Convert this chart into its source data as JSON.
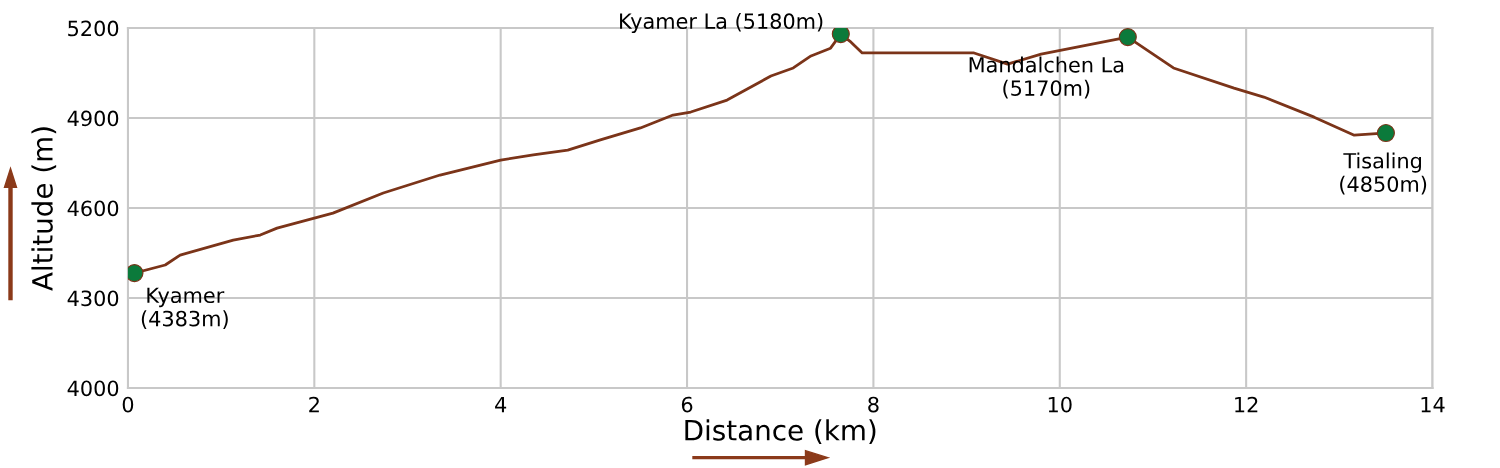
{
  "chart_data": {
    "type": "line",
    "xlabel": "Distance (km)",
    "ylabel": "Altitude (m)",
    "xlim": [
      0,
      14
    ],
    "xticks": [
      0,
      2,
      4,
      6,
      8,
      10,
      12,
      14
    ],
    "ylim": [
      4000,
      5200
    ],
    "yticks": [
      4000,
      4300,
      4600,
      4900,
      5200
    ],
    "grid": true,
    "series": [
      {
        "color": "#7b3419",
        "x": [
          0.07,
          0.4,
          0.56,
          1.13,
          1.42,
          1.6,
          2.2,
          2.74,
          3.35,
          4.0,
          4.35,
          4.72,
          5.07,
          5.5,
          5.85,
          6.04,
          6.43,
          6.9,
          7.14,
          7.33,
          7.54,
          7.65,
          7.76,
          7.88,
          9.08,
          9.44,
          9.8,
          10.73,
          11.22,
          11.87,
          12.19,
          12.73,
          13.16,
          13.5
        ],
        "values": [
          4383,
          4410,
          4443,
          4493,
          4510,
          4533,
          4583,
          4650,
          4710,
          4760,
          4777,
          4793,
          4827,
          4867,
          4910,
          4920,
          4960,
          5040,
          5067,
          5107,
          5133,
          5180,
          5153,
          5117,
          5117,
          5080,
          5113,
          5170,
          5067,
          5000,
          4970,
          4903,
          4843,
          4850
        ]
      },
      {
        "type": "scatter",
        "color": "#0b7a3b",
        "marker": "circle",
        "x": [
          0.07,
          7.65,
          10.73,
          13.5
        ],
        "values": [
          4383,
          5180,
          5170,
          4850
        ]
      }
    ],
    "annotations": [
      {
        "text": "Kyamer\n(4383m)",
        "x": 0.07,
        "y": 4383
      },
      {
        "text": "Kyamer La (5180m)",
        "x": 7.65,
        "y": 5180
      },
      {
        "text": "Mandalchen La\n(5170m)",
        "x": 10.73,
        "y": 5170
      },
      {
        "text": "Tisaling\n(4850m)",
        "x": 13.5,
        "y": 4850
      }
    ]
  }
}
